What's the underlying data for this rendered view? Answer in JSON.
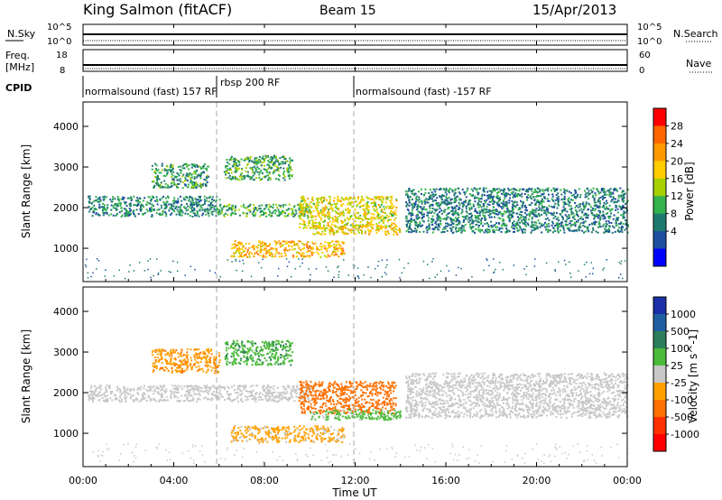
{
  "header": {
    "station": "King Salmon (fitACF)",
    "beam": "Beam 15",
    "date": "15/Apr/2013"
  },
  "sky_panel": {
    "left_label": "N.Sky",
    "left_ticks": [
      "10^5",
      "10^0"
    ],
    "right_label": "N.Search",
    "right_ticks": [
      "10^5",
      "10^0"
    ]
  },
  "freq_panel": {
    "left_label_1": "Freq.",
    "left_label_2": "[MHz]",
    "left_ticks": [
      "18",
      "8"
    ],
    "right_label": "Nave",
    "right_ticks": [
      "60",
      "0"
    ]
  },
  "cpid_panel": {
    "label": "CPID",
    "segments": [
      {
        "text": "normalsound (fast) 157 RF"
      },
      {
        "text": "rbsp 200 RF"
      },
      {
        "text": "normalsound (fast) -157 RF"
      }
    ]
  },
  "power_colorbar": {
    "label": "Power [dB]",
    "ticks": [
      "28",
      "24",
      "20",
      "16",
      "12",
      "8",
      "4"
    ],
    "colors": [
      "#ff0000",
      "#ff6600",
      "#ff9900",
      "#ffcc00",
      "#a6d000",
      "#33b24d",
      "#1e7a6e",
      "#1d4fa0",
      "#0000ff"
    ]
  },
  "velocity_colorbar": {
    "label": "Velocity [m s^-1]",
    "ticks": [
      "1000",
      "500",
      "100",
      "25",
      "-25",
      "-100",
      "-500",
      "-1000"
    ],
    "colors": [
      "#1a2fa8",
      "#1f5ea0",
      "#2a7f5a",
      "#4cbb3a",
      "#c8c8c8",
      "#ffa000",
      "#ff7000",
      "#ff3000",
      "#ff0000"
    ]
  },
  "chart_data": {
    "type": "heatmap",
    "xlabel": "Time UT",
    "x_ticks": [
      "00:00",
      "04:00",
      "08:00",
      "12:00",
      "16:00",
      "20:00",
      "00:00"
    ],
    "x_range_hours": [
      0,
      24
    ],
    "ylabel": "Slant Range [km]",
    "y_ticks": [
      1000,
      2000,
      3000,
      4000
    ],
    "y_range_km": [
      180,
      4600
    ],
    "panels": [
      {
        "name": "power",
        "scale_db": [
          0,
          32
        ],
        "echo_regions": [
          {
            "t_start": 0.2,
            "t_end": 6.0,
            "range_lo": 1800,
            "range_hi": 2300,
            "level": 9
          },
          {
            "t_start": 6.0,
            "t_end": 10.0,
            "range_lo": 1800,
            "range_hi": 2100,
            "level": 12
          },
          {
            "t_start": 3.0,
            "t_end": 5.5,
            "range_lo": 2500,
            "range_hi": 3100,
            "level": 10
          },
          {
            "t_start": 6.2,
            "t_end": 9.2,
            "range_lo": 2700,
            "range_hi": 3300,
            "level": 11
          },
          {
            "t_start": 9.5,
            "t_end": 13.8,
            "range_lo": 1500,
            "range_hi": 2300,
            "level": 18
          },
          {
            "t_start": 6.5,
            "t_end": 11.5,
            "range_lo": 800,
            "range_hi": 1200,
            "level": 22
          },
          {
            "t_start": 10.0,
            "t_end": 14.0,
            "range_lo": 1350,
            "range_hi": 1600,
            "level": 20
          },
          {
            "t_start": 14.2,
            "t_end": 24.0,
            "range_lo": 1400,
            "range_hi": 2500,
            "level": 8
          }
        ]
      },
      {
        "name": "velocity",
        "scale_ms": [
          -1000,
          1000
        ],
        "echo_regions": [
          {
            "t_start": 0.2,
            "t_end": 10.0,
            "range_lo": 1800,
            "range_hi": 2200,
            "level": 0
          },
          {
            "t_start": 3.0,
            "t_end": 6.0,
            "range_lo": 2500,
            "range_hi": 3100,
            "level": -300
          },
          {
            "t_start": 6.2,
            "t_end": 9.2,
            "range_lo": 2700,
            "range_hi": 3300,
            "level": 300
          },
          {
            "t_start": 9.5,
            "t_end": 13.8,
            "range_lo": 1500,
            "range_hi": 2300,
            "level": -500
          },
          {
            "t_start": 10.0,
            "t_end": 14.0,
            "range_lo": 1350,
            "range_hi": 1600,
            "level": 200
          },
          {
            "t_start": 6.5,
            "t_end": 11.5,
            "range_lo": 800,
            "range_hi": 1200,
            "level": -200
          },
          {
            "t_start": 14.2,
            "t_end": 24.0,
            "range_lo": 1400,
            "range_hi": 2500,
            "level": 0
          }
        ]
      }
    ]
  }
}
